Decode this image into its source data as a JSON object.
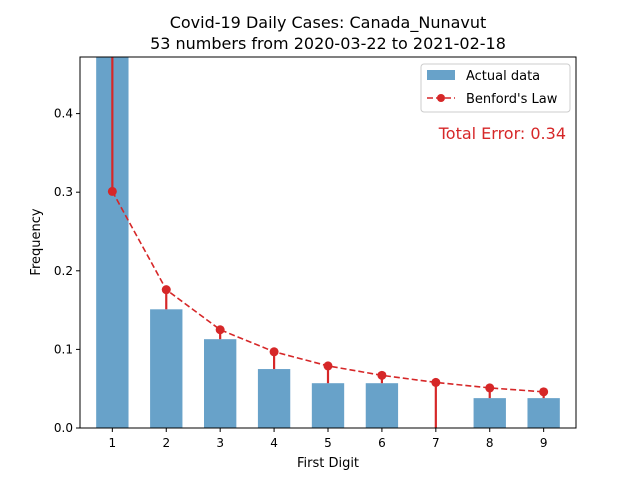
{
  "chart_data": {
    "type": "bar",
    "title": "Covid-19 Daily Cases: Canada_Nunavut",
    "subtitle": "53 numbers from 2020-03-22 to 2021-02-18",
    "xlabel": "First Digit",
    "ylabel": "Frequency",
    "categories": [
      "1",
      "2",
      "3",
      "4",
      "5",
      "6",
      "7",
      "8",
      "9"
    ],
    "x": [
      1,
      2,
      3,
      4,
      5,
      6,
      7,
      8,
      9
    ],
    "ylim": [
      0,
      0.472
    ],
    "xlim": [
      0.4,
      9.6
    ],
    "yticks": [
      0.0,
      0.1,
      0.2,
      0.3,
      0.4
    ],
    "ytick_labels": [
      "0.0",
      "0.1",
      "0.2",
      "0.3",
      "0.4"
    ],
    "grid": false,
    "legend_position": "top-right",
    "series": [
      {
        "name": "Actual data",
        "kind": "bar",
        "color": "#68a2c9",
        "values": [
          0.472,
          0.151,
          0.113,
          0.075,
          0.057,
          0.057,
          0.0,
          0.038,
          0.038
        ]
      },
      {
        "name": "Benford's Law",
        "kind": "line",
        "color": "#d62728",
        "linestyle": "dashed",
        "marker": "circle",
        "values": [
          0.301,
          0.176,
          0.125,
          0.097,
          0.079,
          0.067,
          0.058,
          0.051,
          0.046
        ]
      }
    ],
    "annotation": {
      "text": "Total Error: 0.34",
      "color": "#d62728",
      "position": "top-right"
    }
  }
}
